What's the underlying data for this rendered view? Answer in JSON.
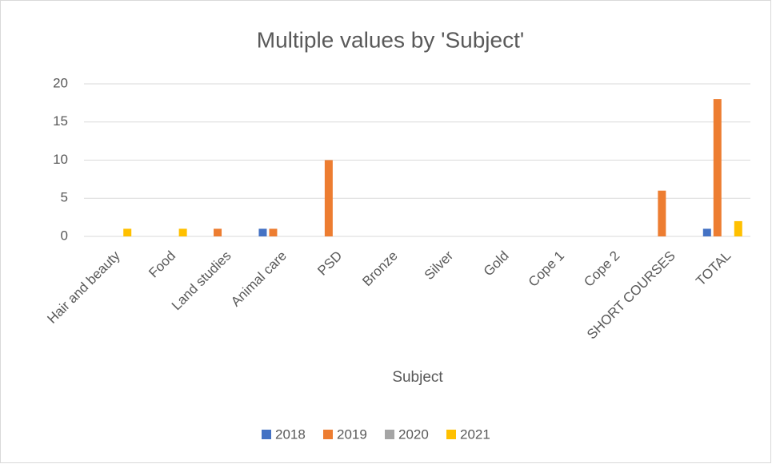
{
  "chart_data": {
    "type": "bar",
    "title": "Multiple values by 'Subject'",
    "x_label": "Subject",
    "categories": [
      "Hair and beauty",
      "Food",
      "Land studies",
      "Animal care",
      "PSD",
      "Bronze",
      "Silver",
      "Gold",
      "Cope 1",
      "Cope 2",
      "SHORT COURSES",
      "TOTAL"
    ],
    "series": [
      {
        "name": "2018",
        "color": "#4472c4",
        "values": [
          0,
          0,
          0,
          1,
          0,
          0,
          0,
          0,
          0,
          0,
          0,
          1
        ]
      },
      {
        "name": "2019",
        "color": "#ed7d31",
        "values": [
          0,
          0,
          1,
          1,
          10,
          0,
          0,
          0,
          0,
          0,
          6,
          18
        ]
      },
      {
        "name": "2020",
        "color": "#a5a5a5",
        "values": [
          0,
          0,
          0,
          0,
          0,
          0,
          0,
          0,
          0,
          0,
          0,
          0
        ]
      },
      {
        "name": "2021",
        "color": "#ffc000",
        "values": [
          1,
          1,
          0,
          0,
          0,
          0,
          0,
          0,
          0,
          0,
          0,
          2
        ]
      }
    ],
    "ylim": [
      0,
      20
    ],
    "yticks": [
      0,
      5,
      10,
      15,
      20
    ],
    "grid": true,
    "legend": "bottom"
  }
}
